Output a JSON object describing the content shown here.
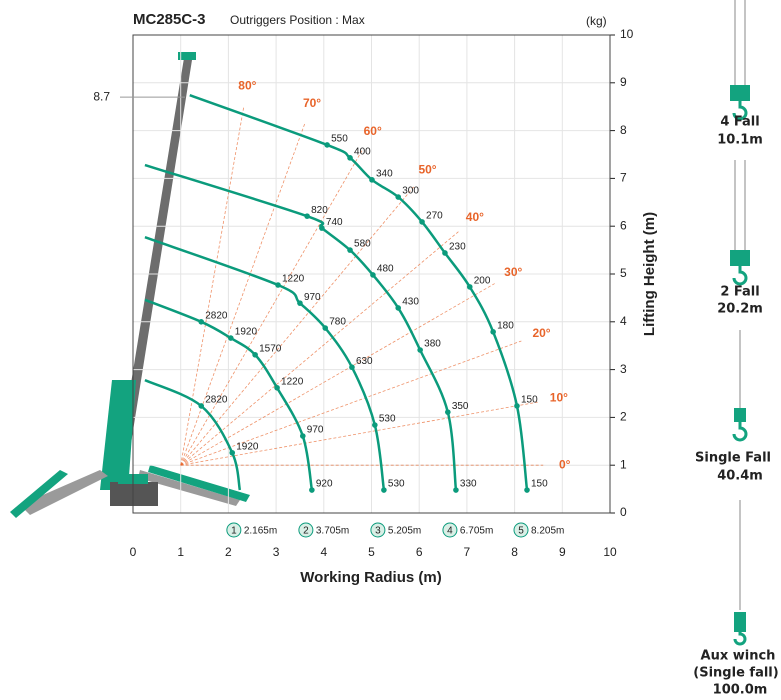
{
  "chart_data": {
    "type": "crane-load",
    "title": "MC285C-3",
    "subtitle": "Outriggers Position : Max",
    "unit": "(kg)",
    "xlabel": "Working Radius (m)",
    "ylabel": "Lifting Height (m)",
    "xlim": [
      0,
      10
    ],
    "ylim": [
      0,
      10
    ],
    "xticks": [
      0,
      1,
      2,
      3,
      4,
      5,
      6,
      7,
      8,
      9,
      10
    ],
    "yticks": [
      0,
      1,
      2,
      3,
      4,
      5,
      6,
      7,
      8,
      9,
      10
    ],
    "grid": true,
    "max_height": 8.7,
    "color": "#0b9b7c",
    "angle_color": "#e8642a",
    "angles": [
      {
        "value": 0,
        "label": "0°"
      },
      {
        "value": 10,
        "label": "10°"
      },
      {
        "value": 20,
        "label": "20°"
      },
      {
        "value": 30,
        "label": "30°"
      },
      {
        "value": 40,
        "label": "40°"
      },
      {
        "value": 50,
        "label": "50°"
      },
      {
        "value": 60,
        "label": "60°"
      },
      {
        "value": 70,
        "label": "70°"
      },
      {
        "value": 80,
        "label": "80°"
      }
    ],
    "series": [
      {
        "name": "2.165m",
        "marker": 1,
        "x": [
          0.25,
          1.43,
          2.08,
          2.24
        ],
        "y": [
          2.78,
          2.24,
          1.26,
          0.48
        ],
        "loads": [
          null,
          2820,
          1920,
          null
        ]
      },
      {
        "name": "3.705m",
        "marker": 2,
        "x": [
          0.25,
          1.43,
          2.05,
          2.56,
          3.02,
          3.56,
          3.75
        ],
        "y": [
          4.46,
          4.0,
          3.66,
          3.31,
          2.62,
          1.61,
          0.48
        ],
        "loads": [
          null,
          2820,
          1920,
          1570,
          1220,
          970,
          920
        ]
      },
      {
        "name": "5.205m",
        "marker": 3,
        "x": [
          0.25,
          3.04,
          3.5,
          4.03,
          4.59,
          5.07,
          5.26
        ],
        "y": [
          5.77,
          4.77,
          4.39,
          3.87,
          3.05,
          1.84,
          0.48
        ],
        "loads": [
          null,
          1220,
          970,
          780,
          630,
          530,
          530
        ]
      },
      {
        "name": "6.705m",
        "marker": 4,
        "x": [
          0.25,
          3.65,
          3.96,
          4.55,
          5.03,
          5.56,
          6.02,
          6.6,
          6.77
        ],
        "y": [
          7.28,
          6.21,
          5.96,
          5.5,
          4.98,
          4.29,
          3.41,
          2.11,
          0.48
        ],
        "loads": [
          null,
          820,
          740,
          580,
          480,
          430,
          380,
          350,
          330
        ]
      },
      {
        "name": "8.205m",
        "marker": 5,
        "x": [
          1.19,
          4.07,
          4.55,
          5.01,
          5.56,
          6.06,
          6.54,
          7.06,
          7.55,
          8.05,
          8.26
        ],
        "y": [
          8.74,
          7.7,
          7.43,
          6.97,
          6.61,
          6.09,
          5.44,
          4.73,
          3.79,
          2.24,
          0.48
        ],
        "loads": [
          null,
          550,
          400,
          340,
          300,
          270,
          230,
          200,
          180,
          150,
          150
        ]
      }
    ],
    "hooks": [
      {
        "name": "4 Fall",
        "value": "10.1m"
      },
      {
        "name": "2 Fall",
        "value": "20.2m"
      },
      {
        "name": "Single Fall",
        "value": "40.4m"
      },
      {
        "name": "Aux winch",
        "note": "(Single fall)",
        "value": "100.0m"
      }
    ]
  }
}
